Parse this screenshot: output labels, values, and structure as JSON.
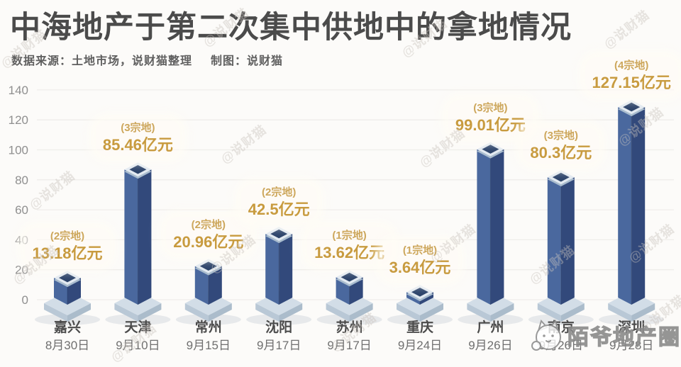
{
  "title": "中海地产于第二次集中供地中的拿地情况",
  "source_note": "数据来源：土地市场，说财猫整理",
  "credit_note": "制图：说财猫",
  "watermark": "@说财猫",
  "logo_text": "陌爷地产圈",
  "colors": {
    "bar_left": "#4a689e",
    "bar_right": "#32497b",
    "cap_rim": "#e3eaf1",
    "cap_rim_shadow": "#a9bcce",
    "cap_inner": "#2b4269",
    "pedestal_top": "#d2dde7",
    "pedestal_left": "#b9c8d6",
    "pedestal_right": "#abbccb",
    "value_gold": "#c89b3f",
    "parcel_gold": "#cda75c",
    "grid": "#efedea",
    "axis_text": "#8f8f8f"
  },
  "chart_data": {
    "type": "bar",
    "title": "中海地产于第二次集中供地中的拿地情况",
    "unit": "亿元",
    "categories": [
      "嘉兴",
      "天津",
      "常州",
      "沈阳",
      "苏州",
      "重庆",
      "广州",
      "南京",
      "深圳"
    ],
    "dates": [
      "8月30日",
      "9月10日",
      "9月15日",
      "9月17日",
      "9月17日",
      "9月24日",
      "9月26日",
      "9月26日",
      "9月28日"
    ],
    "values": [
      13.18,
      85.46,
      20.96,
      42.5,
      13.62,
      3.64,
      99.01,
      80.3,
      127.15
    ],
    "parcels": [
      2,
      3,
      2,
      2,
      1,
      1,
      3,
      3,
      4
    ],
    "parcel_labels": [
      "(2宗地)",
      "(3宗地)",
      "(2宗地)",
      "(2宗地)",
      "(1宗地)",
      "(1宗地)",
      "(3宗地)",
      "(3宗地)",
      "(4宗地)"
    ],
    "value_labels": [
      "13.18亿元",
      "85.46亿元",
      "20.96亿元",
      "42.5亿元",
      "13.62亿元",
      "3.64亿元",
      "99.01亿元",
      "80.3亿元",
      "127.15亿元"
    ],
    "ylim": [
      0,
      140
    ],
    "yticks": [
      0,
      20,
      40,
      60,
      80,
      100,
      120,
      140
    ],
    "grid": true,
    "legend": null
  }
}
